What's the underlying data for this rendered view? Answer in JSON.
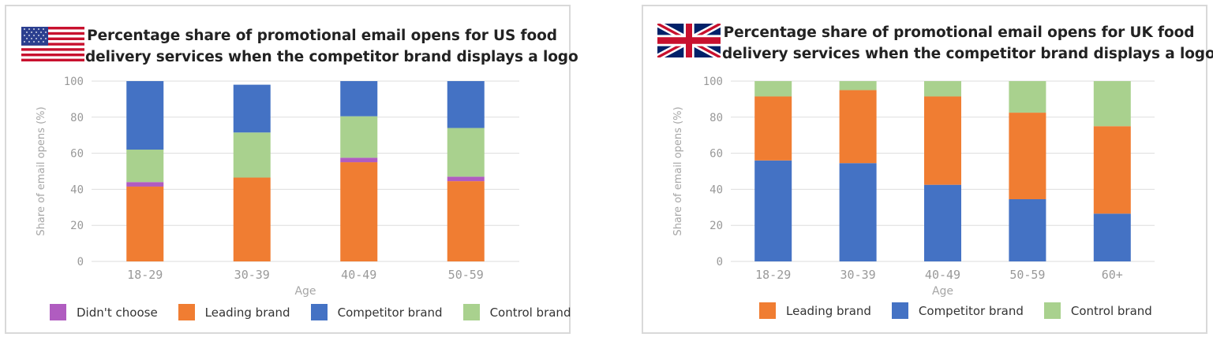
{
  "colors": {
    "didnt_choose": "#b05cc0",
    "leading": "#f07d32",
    "competitor": "#4472c4",
    "control": "#a9d18e",
    "grid": "#dddddd",
    "tick_text": "#999999"
  },
  "charts": {
    "us": {
      "flag_icon": "us-flag-icon",
      "title_line1": "Percentage share of promotional email opens for US food",
      "title_line2": "delivery services when the competitor brand displays a logo",
      "legend": [
        "Didn't choose",
        "Leading brand",
        "Competitor brand",
        "Control brand"
      ]
    },
    "uk": {
      "flag_icon": "uk-flag-icon",
      "title_line1": "Percentage share of promotional email opens for UK food",
      "title_line2": "delivery services when the competitor brand displays a logo",
      "legend": [
        "Leading brand",
        "Competitor brand",
        "Control brand"
      ]
    }
  },
  "chart_data": [
    {
      "type": "bar",
      "stacked": true,
      "title": "Percentage share of promotional email opens for US food delivery services when the competitor brand displays a logo",
      "xlabel": "Age",
      "ylabel": "Share of email opens (%)",
      "ylim": [
        0,
        100
      ],
      "yticks": [
        "0",
        "20",
        "40",
        "60",
        "80",
        "100"
      ],
      "grid": true,
      "legend_position": "bottom",
      "categories": [
        "18-29",
        "30-39",
        "40-49",
        "50-59"
      ],
      "series": [
        {
          "name": "Leading brand",
          "color": "#f07d32",
          "values": [
            41.5,
            46.5,
            55,
            44.5
          ]
        },
        {
          "name": "Didn't choose",
          "color": "#b05cc0",
          "values": [
            2.5,
            0,
            2.5,
            2.5
          ]
        },
        {
          "name": "Control brand",
          "color": "#a9d18e",
          "values": [
            18,
            25,
            23,
            27
          ]
        },
        {
          "name": "Competitor brand",
          "color": "#4472c4",
          "values": [
            38,
            26.5,
            19.5,
            26
          ]
        }
      ]
    },
    {
      "type": "bar",
      "stacked": true,
      "title": "Percentage share of promotional email opens for UK food delivery services when the competitor brand displays a logo",
      "xlabel": "Age",
      "ylabel": "Share of email opens (%)",
      "ylim": [
        0,
        100
      ],
      "yticks": [
        "0",
        "20",
        "40",
        "60",
        "80",
        "100"
      ],
      "grid": true,
      "legend_position": "bottom",
      "categories": [
        "18-29",
        "30-39",
        "40-49",
        "50-59",
        "60+"
      ],
      "series": [
        {
          "name": "Competitor brand",
          "color": "#4472c4",
          "values": [
            56,
            54.5,
            42.5,
            34.5,
            26.5
          ]
        },
        {
          "name": "Leading brand",
          "color": "#f07d32",
          "values": [
            35.5,
            40.5,
            49,
            48,
            48.5
          ]
        },
        {
          "name": "Control brand",
          "color": "#a9d18e",
          "values": [
            8.5,
            5,
            8.5,
            17.5,
            25
          ]
        }
      ]
    }
  ]
}
